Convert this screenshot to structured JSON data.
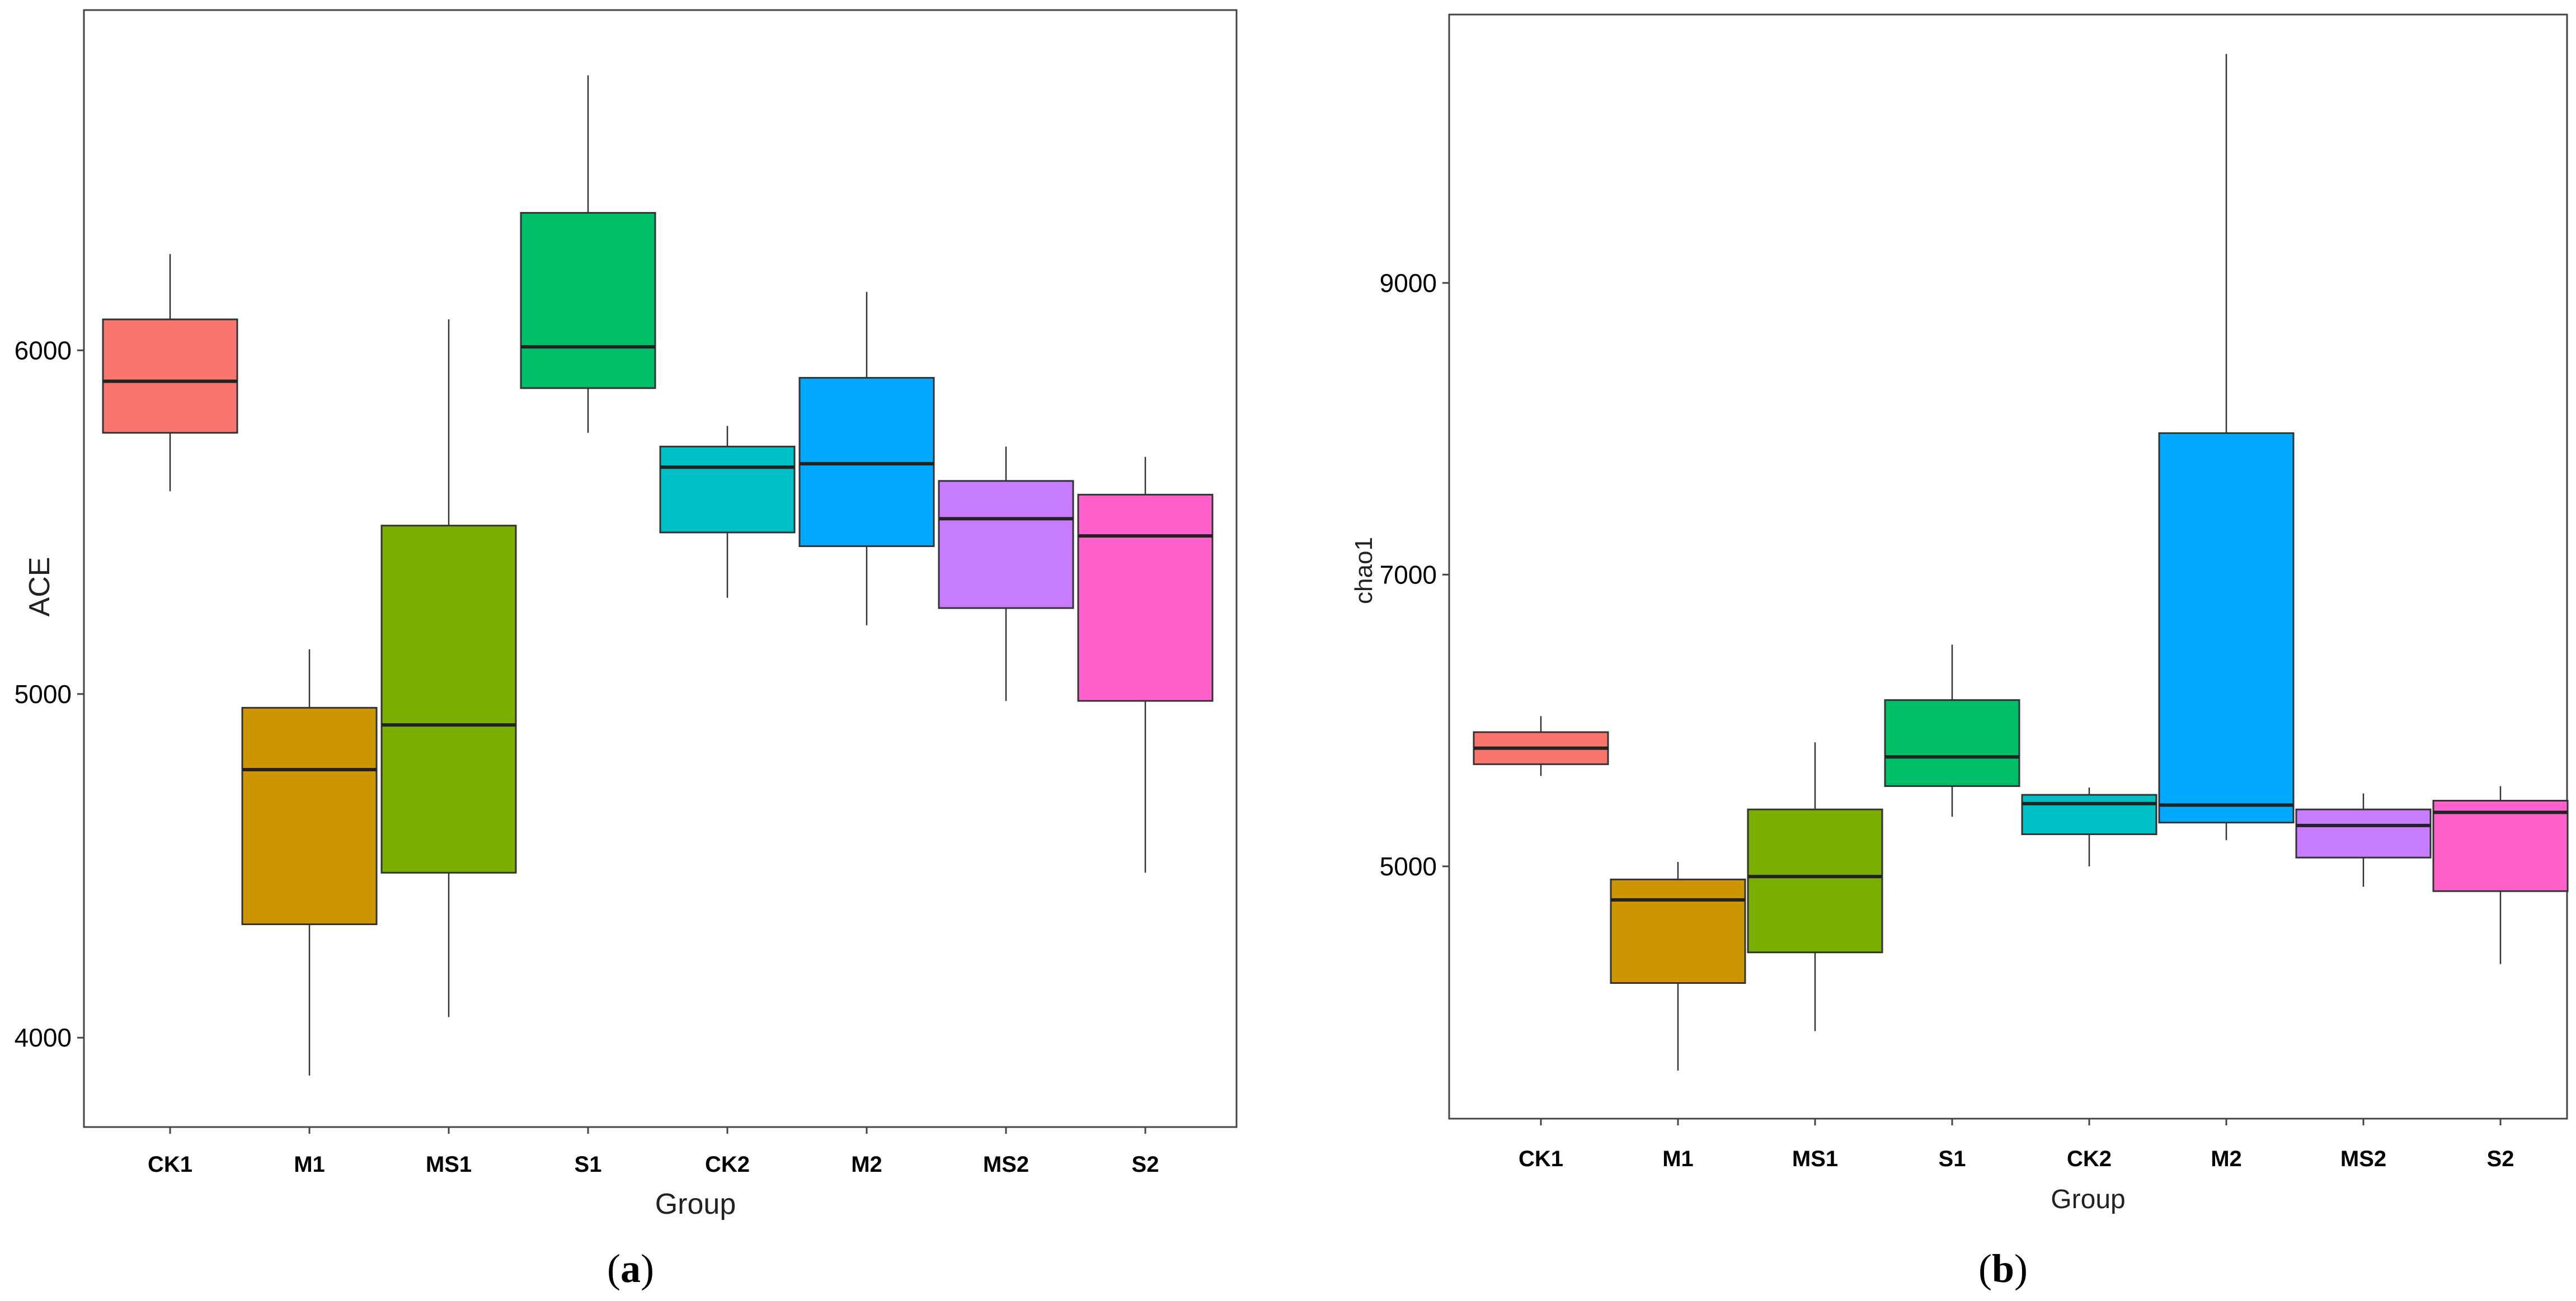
{
  "chart_data": [
    {
      "type": "boxplot",
      "panel_label": "a",
      "xlabel": "Group",
      "ylabel": "ACE",
      "ylim": [
        3740,
        6990
      ],
      "yticks": [
        4000,
        5000,
        6000
      ],
      "categories": [
        "CK1",
        "M1",
        "MS1",
        "S1",
        "CK2",
        "M2",
        "MS2",
        "S2"
      ],
      "colors": [
        "#F8766D",
        "#CD9600",
        "#7CAE00",
        "#00BE67",
        "#00BFC4",
        "#00A9FF",
        "#C77CFF",
        "#FF61CC"
      ],
      "boxes": [
        {
          "name": "CK1",
          "min": 5590,
          "q1": 5760,
          "median": 5910,
          "q3": 6090,
          "max": 6280
        },
        {
          "name": "M1",
          "min": 3890,
          "q1": 4330,
          "median": 4780,
          "q3": 4960,
          "max": 5130
        },
        {
          "name": "MS1",
          "min": 4060,
          "q1": 4480,
          "median": 4910,
          "q3": 5490,
          "max": 6090
        },
        {
          "name": "S1",
          "min": 5760,
          "q1": 5890,
          "median": 6010,
          "q3": 6400,
          "max": 6800
        },
        {
          "name": "CK2",
          "min": 5280,
          "q1": 5470,
          "median": 5660,
          "q3": 5720,
          "max": 5780
        },
        {
          "name": "M2",
          "min": 5200,
          "q1": 5430,
          "median": 5670,
          "q3": 5920,
          "max": 6170
        },
        {
          "name": "MS2",
          "min": 4980,
          "q1": 5250,
          "median": 5510,
          "q3": 5620,
          "max": 5720
        },
        {
          "name": "S2",
          "min": 4480,
          "q1": 4980,
          "median": 5460,
          "q3": 5580,
          "max": 5690
        }
      ]
    },
    {
      "type": "boxplot",
      "panel_label": "b",
      "xlabel": "Group",
      "ylabel": "chao1",
      "ylim": [
        3270,
        10840
      ],
      "yticks": [
        5000,
        7000,
        9000
      ],
      "categories": [
        "CK1",
        "M1",
        "MS1",
        "S1",
        "CK2",
        "M2",
        "MS2",
        "S2"
      ],
      "colors": [
        "#F8766D",
        "#CD9600",
        "#7CAE00",
        "#00BE67",
        "#00BFC4",
        "#00A9FF",
        "#C77CFF",
        "#FF61CC"
      ],
      "boxes": [
        {
          "name": "CK1",
          "min": 5620,
          "q1": 5700,
          "median": 5810,
          "q3": 5920,
          "max": 6030
        },
        {
          "name": "M1",
          "min": 3600,
          "q1": 4200,
          "median": 4770,
          "q3": 4910,
          "max": 5030
        },
        {
          "name": "MS1",
          "min": 3870,
          "q1": 4410,
          "median": 4930,
          "q3": 5390,
          "max": 5850
        },
        {
          "name": "S1",
          "min": 5340,
          "q1": 5550,
          "median": 5750,
          "q3": 6140,
          "max": 6520
        },
        {
          "name": "CK2",
          "min": 5000,
          "q1": 5220,
          "median": 5430,
          "q3": 5490,
          "max": 5540
        },
        {
          "name": "M2",
          "min": 5180,
          "q1": 5300,
          "median": 5420,
          "q3": 7970,
          "max": 10570
        },
        {
          "name": "MS2",
          "min": 4860,
          "q1": 5060,
          "median": 5280,
          "q3": 5390,
          "max": 5500
        },
        {
          "name": "S2",
          "min": 4330,
          "q1": 4830,
          "median": 5370,
          "q3": 5450,
          "max": 5550
        }
      ]
    }
  ]
}
